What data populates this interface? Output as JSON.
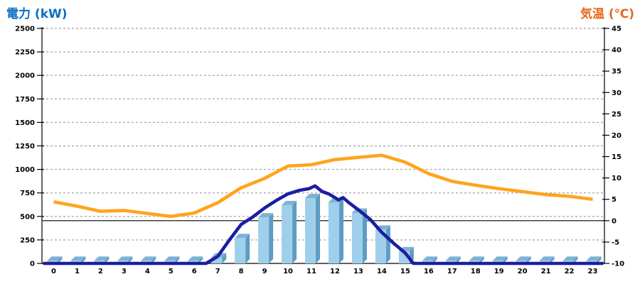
{
  "titles": {
    "left": "電力 (kW)",
    "right": "気温 (℃)"
  },
  "chart_data": {
    "type": "combo",
    "title": "",
    "x": {
      "label_unit": "hour",
      "categories": [
        "0",
        "1",
        "2",
        "3",
        "4",
        "5",
        "6",
        "7",
        "8",
        "9",
        "10",
        "11",
        "12",
        "13",
        "14",
        "15",
        "16",
        "17",
        "18",
        "19",
        "20",
        "21",
        "22",
        "23"
      ]
    },
    "left_axis": {
      "title": "電力 (kW)",
      "unit": "kW",
      "range": [
        0,
        2500
      ],
      "tick_step": 250,
      "ticks": [
        0,
        250,
        500,
        750,
        1000,
        1250,
        1500,
        1750,
        2000,
        2250,
        2500
      ]
    },
    "right_axis": {
      "title": "気温 (℃)",
      "unit": "℃",
      "range": [
        -10,
        45
      ],
      "tick_step": 5,
      "ticks": [
        -10,
        -5,
        0,
        5,
        10,
        15,
        20,
        25,
        30,
        35,
        40,
        45
      ]
    },
    "grid": {
      "line_color": "#ADADAD",
      "dashed": true,
      "zero_temp_line_color": "#000000"
    },
    "series": [
      {
        "name": "power-bars",
        "type": "bar",
        "axis": "left",
        "unit": "kW",
        "colors": {
          "front": "#9FCFEA",
          "side": "#5E9CC4",
          "top": "#7FB2D2"
        },
        "values": [
          28,
          28,
          28,
          28,
          28,
          28,
          28,
          65,
          270,
          490,
          620,
          695,
          650,
          540,
          360,
          130,
          28,
          28,
          28,
          28,
          28,
          28,
          28,
          28
        ]
      },
      {
        "name": "power-line",
        "type": "line",
        "axis": "left",
        "unit": "kW",
        "color": "#1B1EA2",
        "points": [
          [
            -0.45,
            0
          ],
          [
            0,
            0
          ],
          [
            1,
            0
          ],
          [
            2,
            0
          ],
          [
            3,
            0
          ],
          [
            4,
            0
          ],
          [
            5,
            0
          ],
          [
            6,
            0
          ],
          [
            6.5,
            0
          ],
          [
            7,
            75
          ],
          [
            7.5,
            250
          ],
          [
            8,
            415
          ],
          [
            8.5,
            495
          ],
          [
            9,
            590
          ],
          [
            9.5,
            670
          ],
          [
            10,
            740
          ],
          [
            10.5,
            778
          ],
          [
            10.9,
            795
          ],
          [
            11.15,
            825
          ],
          [
            11.45,
            765
          ],
          [
            11.75,
            738
          ],
          [
            12,
            700
          ],
          [
            12.15,
            676
          ],
          [
            12.35,
            700
          ],
          [
            12.6,
            645
          ],
          [
            13,
            570
          ],
          [
            13.5,
            470
          ],
          [
            14,
            330
          ],
          [
            14.5,
            215
          ],
          [
            15,
            110
          ],
          [
            15.35,
            0
          ],
          [
            16,
            0
          ],
          [
            17,
            0
          ],
          [
            18,
            0
          ],
          [
            19,
            0
          ],
          [
            20,
            0
          ],
          [
            21,
            0
          ],
          [
            22,
            0
          ],
          [
            23,
            0
          ],
          [
            23.45,
            0
          ]
        ]
      },
      {
        "name": "temperature-line",
        "type": "line",
        "axis": "right",
        "unit": "℃",
        "color": "#FFA41C",
        "values_by_hour": [
          4.4,
          3.4,
          2.2,
          2.4,
          1.7,
          1.0,
          1.8,
          4.2,
          7.7,
          9.9,
          12.8,
          13.1,
          14.3,
          14.8,
          15.3,
          13.7,
          11.0,
          9.2,
          8.3,
          7.5,
          6.8,
          6.1,
          5.7,
          5.0
        ]
      }
    ]
  }
}
